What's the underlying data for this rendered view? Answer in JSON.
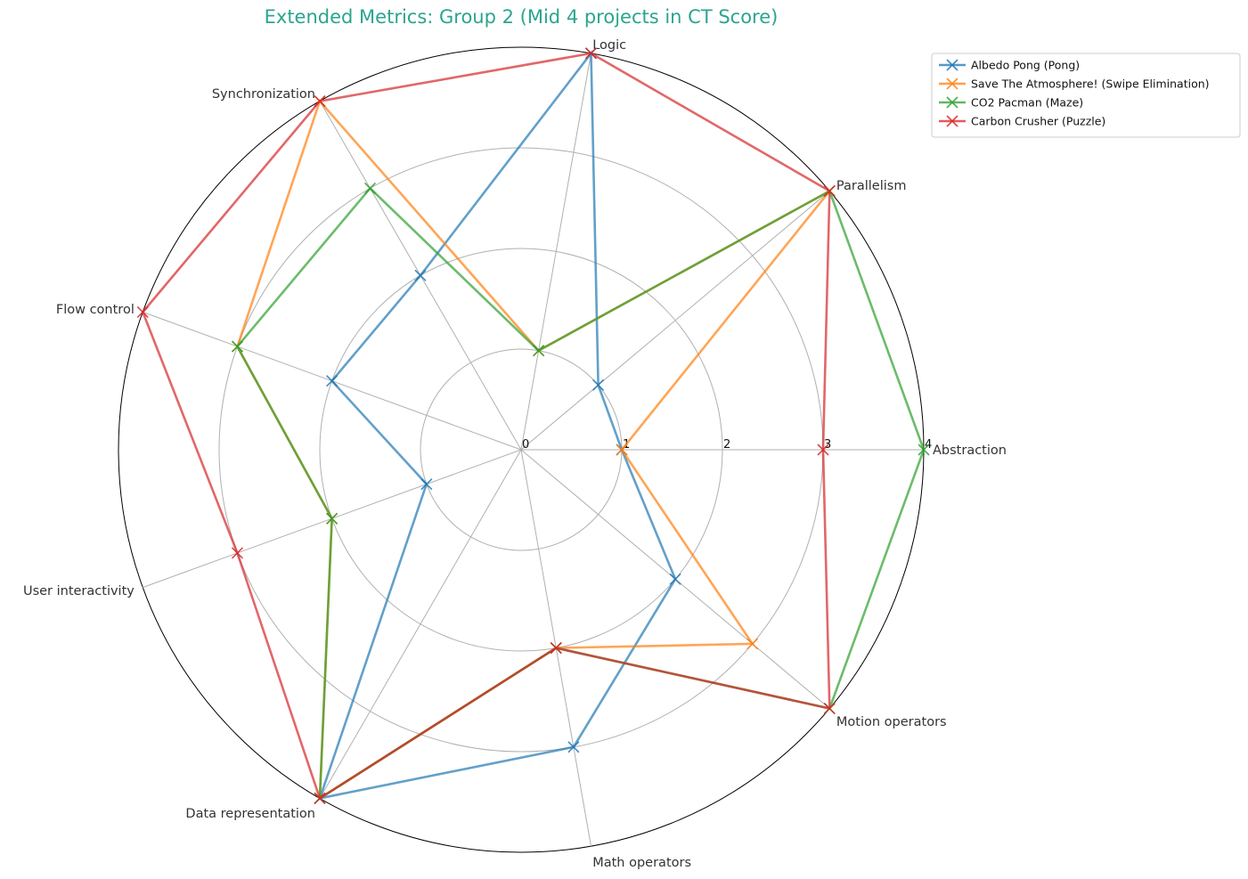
{
  "chart_data": {
    "type": "radar",
    "title": "Extended Metrics: Group 2 (Mid 4 projects in CT Score)",
    "title_color": "#2aa58f",
    "axes": [
      "Abstraction",
      "Parallelism",
      "Logic",
      "Synchronization",
      "Flow control",
      "User interactivity",
      "Data representation",
      "Math operators",
      "Motion operators"
    ],
    "rlim": [
      0,
      4
    ],
    "rticks": [
      0,
      1,
      2,
      3,
      4
    ],
    "rtick_labels": [
      "0",
      "1",
      "2",
      "3",
      "4"
    ],
    "grid": true,
    "legend_position": "upper-right-outside",
    "series": [
      {
        "name": "Albedo Pong (Pong)",
        "color": "#1f77b4",
        "values": [
          1,
          1,
          4,
          2,
          2,
          1,
          4,
          3,
          2
        ]
      },
      {
        "name": "Save The Atmosphere! (Swipe Elimination)",
        "color": "#ff7f0e",
        "values": [
          1,
          4,
          1,
          4,
          3,
          2,
          4,
          2,
          3
        ]
      },
      {
        "name": "CO2 Pacman (Maze)",
        "color": "#2ca02c",
        "values": [
          4,
          4,
          1,
          3,
          3,
          2,
          4,
          2,
          4
        ]
      },
      {
        "name": "Carbon Crusher (Puzzle)",
        "color": "#d62728",
        "values": [
          3,
          4,
          4,
          4,
          4,
          3,
          4,
          2,
          4
        ]
      }
    ]
  }
}
